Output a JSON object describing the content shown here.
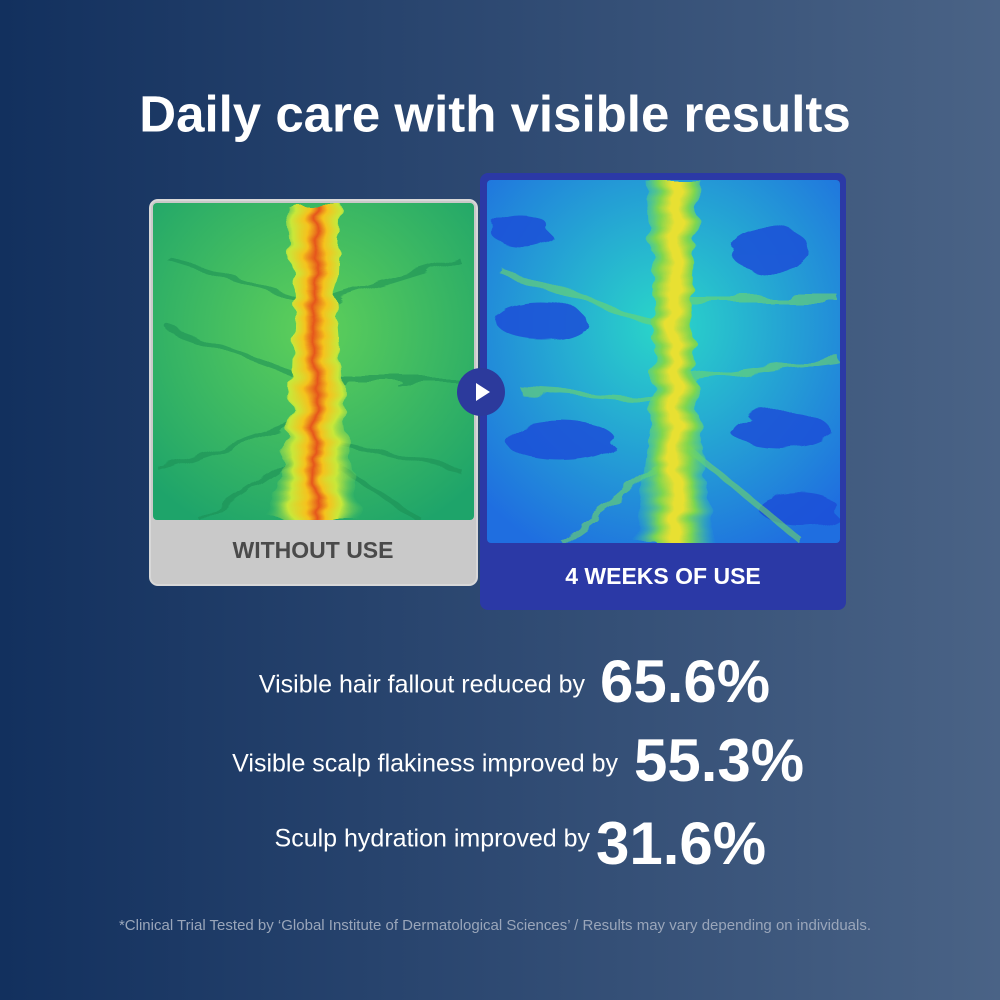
{
  "header": {
    "title": "Daily care with visible results"
  },
  "comparison": {
    "before": {
      "label": "WITHOUT USE"
    },
    "after": {
      "label": "4 WEEKS OF USE"
    }
  },
  "stats": [
    {
      "text": "Visible hair fallout reduced by",
      "value": "65.6%"
    },
    {
      "text": "Visible scalp flakiness improved by",
      "value": "55.3%"
    },
    {
      "text": "Sculp hydration improved by",
      "value": "31.6%"
    }
  ],
  "footnote": "*Clinical Trial Tested by ‘Global Institute of Dermatological Sciences’ / Results may vary depending on individuals."
}
